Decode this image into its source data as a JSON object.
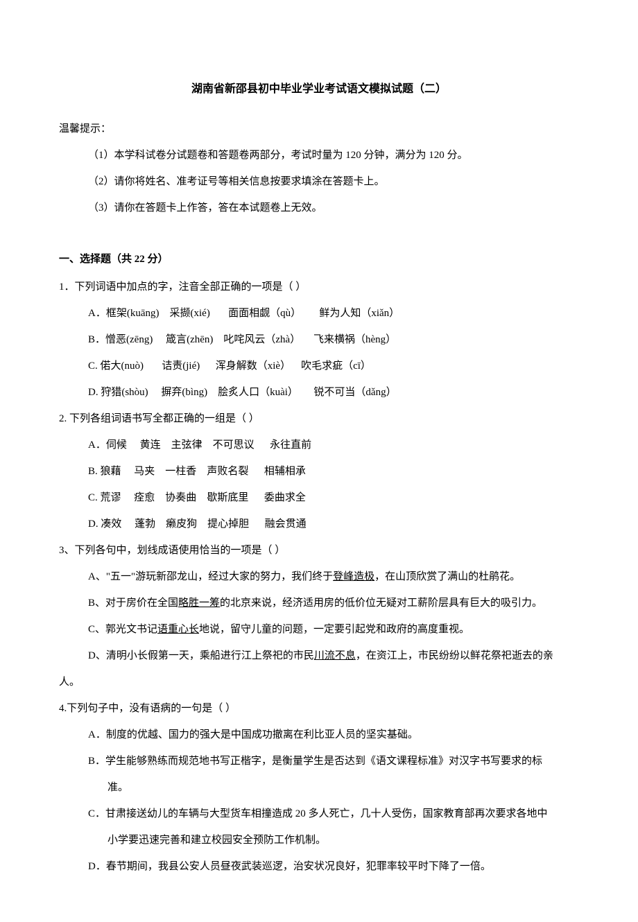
{
  "title": "湖南省新邵县初中毕业学业考试语文模拟试题（二）",
  "hints": {
    "label": "温馨提示：",
    "items": [
      "（1）本学科试卷分试题卷和答题卷两部分，考试时量为 120 分钟，满分为 120 分。",
      "（2）请你将姓名、准考证号等相关信息按要求填涂在答题卡上。",
      "（3）请你在答题卡上作答，答在本试题卷上无效。"
    ]
  },
  "section1": {
    "header": "一、选择题（共 22 分）"
  },
  "q1": {
    "stem": "1．下列词语中加点的字，注音全部正确的一项是（      ）",
    "a": {
      "label": "A．",
      "c1": "框架(kuāng)",
      "c2": "采撷(xié)",
      "c3": "面面相觑（qù）",
      "c4": "鲜为人知（xiǎn）"
    },
    "b": {
      "label": "B．",
      "c1": "憎恶(zēng)",
      "c2": "箴言(zhēn)",
      "c3": "叱咤风云（zhà）",
      "c4": "飞来横祸（hèng）"
    },
    "c": {
      "label": "C. ",
      "c1": "偌大(nuò)",
      "c2": "诘责(jié)",
      "c3": "浑身解数（xiè）",
      "c4": "吹毛求疵（cī）"
    },
    "d": {
      "label": "D. ",
      "c1": "狩猎(shòu)",
      "c2": "摒弃(bìng)",
      "c3": "脍炙人口（kuài）",
      "c4": "锐不可当（dǎng）"
    }
  },
  "q2": {
    "stem": "2.  下列各组词语书写全都正确的一组是（     ）",
    "a": {
      "label": "A．",
      "c1": "伺候",
      "c2": "黄连",
      "c3": "主弦律",
      "c4": "不可思议",
      "c5": "永往直前"
    },
    "b": {
      "label": "B. ",
      "c1": "狼藉",
      "c2": "马夹",
      "c3": "一柱香",
      "c4": "声败名裂",
      "c5": "相辅相承"
    },
    "c": {
      "label": "C. ",
      "c1": "荒谬",
      "c2": "痊愈",
      "c3": "协奏曲",
      "c4": "歇斯底里",
      "c5": "委曲求全"
    },
    "d": {
      "label": "D. ",
      "c1": "凑效",
      "c2": "蓬勃",
      "c3": "癞皮狗",
      "c4": "提心掉胆",
      "c5": "融会贯通"
    }
  },
  "q3": {
    "stem": "3、下列各句中，划线成语使用恰当的一项是（       ）",
    "a": {
      "pre": "A、\"五一\"游玩新邵龙山，经过大家的努力，我们终于",
      "u": "登峰造极",
      "post": "，在山顶欣赏了满山的杜鹃花。"
    },
    "b": {
      "pre": "B、对于房价在全国",
      "u": "略胜一筹",
      "post": "的北京来说，经济适用房的低价位无疑对工薪阶层具有巨大的吸引力。"
    },
    "c": {
      "pre": "C、郭光文书记",
      "u": "语重心长",
      "post": "地说，留守儿童的问题，一定要引起党和政府的高度重视。"
    },
    "d": {
      "pre": "D、清明小长假第一天，乘船进行江上祭祀的市民",
      "u": "川流不息",
      "post": "，在资江上，市民纷纷以鲜花祭祀逝去的亲"
    },
    "d2": "人。"
  },
  "q4": {
    "stem": "4.下列句子中，没有语病的一句是（    ）",
    "a": "A．制度的优越、国力的强大是中国成功撤离在利比亚人员的坚实基础。",
    "b1": "B．学生能够熟练而规范地书写正楷字，是衡量学生是否达到《语文课程标准》对汉字书写要求的标",
    "b2": "准。",
    "c1": "C．甘肃接送幼儿的车辆与大型货车相撞造成 20 多人死亡，几十人受伤，国家教育部再次要求各地中",
    "c2": "小学要迅速完善和建立校园安全预防工作机制。",
    "d": "D．春节期间，我县公安人员昼夜武装巡逻，治安状况良好，犯罪率较平时下降了一倍。"
  }
}
